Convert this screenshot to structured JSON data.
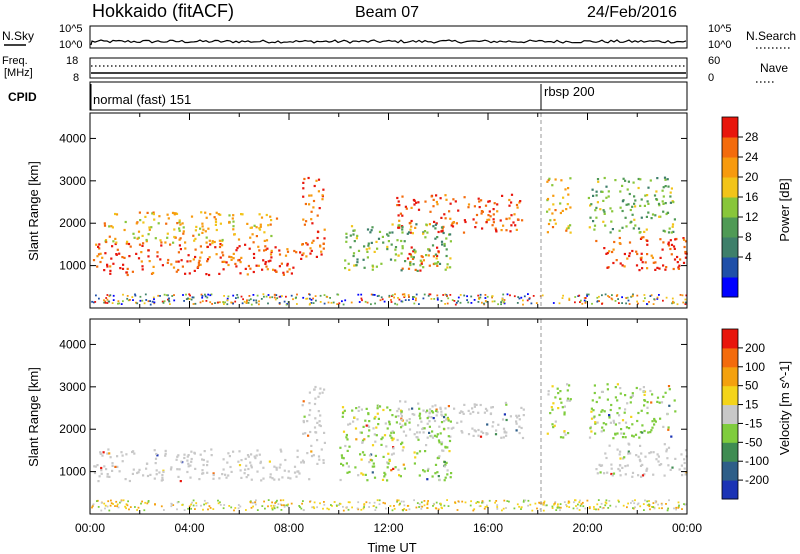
{
  "header": {
    "station": "Hokkaido (fitACF)",
    "beam": "Beam 07",
    "date": "24/Feb/2016"
  },
  "strip_labels": {
    "nsky": "N.Sky",
    "nsky_ticks": [
      "10^5",
      "10^0"
    ],
    "nsearch": "N.Search",
    "nsearch_ticks": [
      "10^5",
      "10^0"
    ],
    "freq_line1": "Freq.",
    "freq_line2": "[MHz]",
    "freq_ticks": [
      "18",
      "8"
    ],
    "nave": "Nave",
    "nave_ticks": [
      "60",
      "0"
    ],
    "cpid": "CPID"
  },
  "cpid_segments": [
    {
      "label": "normal (fast) 151",
      "start_hour": 0
    },
    {
      "label": "rbsp 200",
      "start_hour": 18
    }
  ],
  "chart_data": [
    {
      "type": "heatmap",
      "panel": "power",
      "xlabel": "",
      "ylabel": "Slant Range [km]",
      "xlim_hours": [
        0,
        24
      ],
      "ylim": [
        0,
        4600
      ],
      "y_ticks": [
        1000,
        2000,
        3000,
        4000
      ],
      "colorbar_label": "Power [dB]",
      "colorbar_ticks": [
        "28",
        "24",
        "20",
        "16",
        "12",
        "8",
        "4"
      ],
      "colorbar_colors": [
        "#0000ff",
        "#1f4fa8",
        "#3e7f6a",
        "#4f9a55",
        "#88c63a",
        "#f2c419",
        "#f79a0e",
        "#f36b0c",
        "#e8160c"
      ],
      "regions": [
        {
          "t0": 0.1,
          "t1": 8.8,
          "r0": 800,
          "r1": 1550,
          "intensity": "high"
        },
        {
          "t0": 0.5,
          "t1": 7.5,
          "r0": 1550,
          "r1": 2300,
          "intensity": "medium"
        },
        {
          "t0": 8.5,
          "t1": 9.4,
          "r0": 1200,
          "r1": 3100,
          "intensity": "high"
        },
        {
          "t0": 12.3,
          "t1": 17.4,
          "r0": 1800,
          "r1": 2700,
          "intensity": "high"
        },
        {
          "t0": 12.5,
          "t1": 14.0,
          "r0": 900,
          "r1": 1500,
          "intensity": "high"
        },
        {
          "t0": 10.2,
          "t1": 14.5,
          "r0": 900,
          "r1": 2000,
          "intensity": "low"
        },
        {
          "t0": 18.3,
          "t1": 19.3,
          "r0": 1800,
          "r1": 3100,
          "intensity": "medium"
        },
        {
          "t0": 20.3,
          "t1": 24.0,
          "r0": 900,
          "r1": 1700,
          "intensity": "high"
        },
        {
          "t0": 20.0,
          "t1": 23.5,
          "r0": 1800,
          "r1": 3100,
          "intensity": "low"
        }
      ]
    },
    {
      "type": "heatmap",
      "panel": "velocity",
      "xlabel": "Time UT",
      "ylabel": "Slant Range [km]",
      "xlim_hours": [
        0,
        24
      ],
      "ylim": [
        0,
        4600
      ],
      "x_ticks": [
        "00:00",
        "04:00",
        "08:00",
        "12:00",
        "16:00",
        "20:00",
        "00:00"
      ],
      "y_ticks": [
        1000,
        2000,
        3000,
        4000
      ],
      "colorbar_label": "Velocity [m s^-1]",
      "colorbar_ticks": [
        "200",
        "100",
        "50",
        "15",
        "-15",
        "-50",
        "-100",
        "-200"
      ],
      "colorbar_colors": [
        "#1b33b5",
        "#2e5e88",
        "#3f8c52",
        "#7fcc3d",
        "#c8c8c8",
        "#f4d41a",
        "#f4a10e",
        "#f36b0c",
        "#e8160c"
      ],
      "regions": [
        {
          "t0": 0.1,
          "t1": 8.8,
          "r0": 800,
          "r1": 1550,
          "class": "ground-grey"
        },
        {
          "t0": 8.5,
          "t1": 9.4,
          "r0": 1200,
          "r1": 3100,
          "class": "ground-grey"
        },
        {
          "t0": 12.3,
          "t1": 17.4,
          "r0": 1800,
          "r1": 2700,
          "class": "ground-grey"
        },
        {
          "t0": 20.3,
          "t1": 24.0,
          "r0": 900,
          "r1": 1700,
          "class": "ground-grey"
        },
        {
          "t0": 10.0,
          "t1": 14.5,
          "r0": 800,
          "r1": 2600,
          "class": "green"
        },
        {
          "t0": 18.3,
          "t1": 19.3,
          "r0": 1800,
          "r1": 3100,
          "class": "green"
        },
        {
          "t0": 20.0,
          "t1": 23.5,
          "r0": 1800,
          "r1": 3100,
          "class": "green"
        }
      ]
    }
  ]
}
